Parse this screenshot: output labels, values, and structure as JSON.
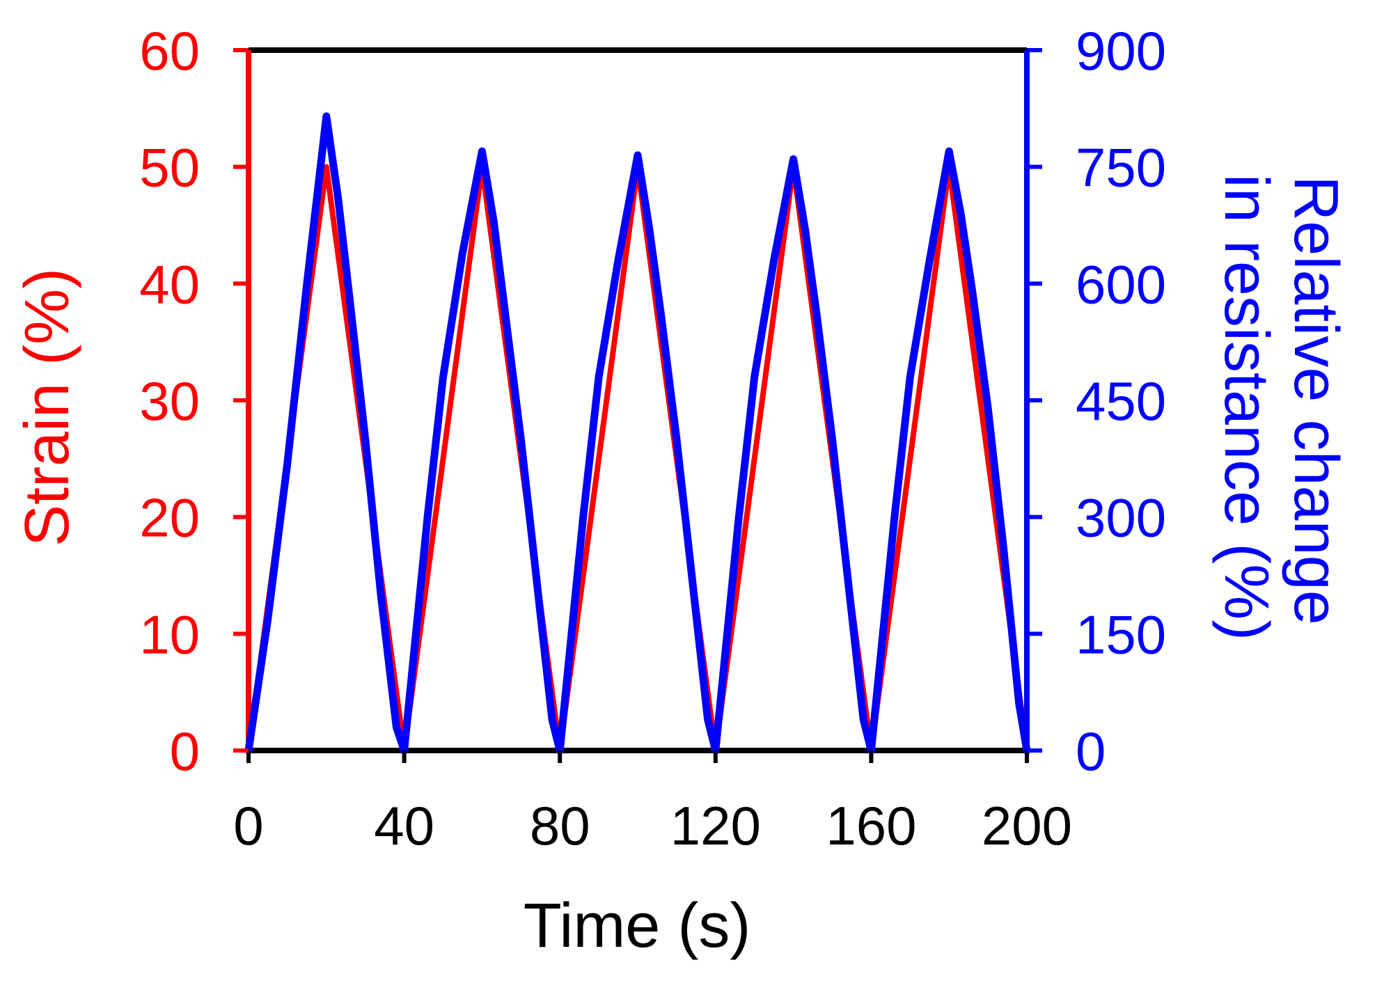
{
  "chart_data": {
    "type": "line",
    "xlabel": "Time (s)",
    "ylabel_left": "Strain (%)",
    "ylabel_right_line1": "Relative change",
    "ylabel_right_line2": "in resistance (%)",
    "xlim": [
      0,
      200
    ],
    "ylim_left": [
      0,
      60
    ],
    "ylim_right": [
      0,
      900
    ],
    "x_ticks": [
      0,
      40,
      80,
      120,
      160,
      200
    ],
    "y_left_ticks": [
      0,
      10,
      20,
      30,
      40,
      50,
      60
    ],
    "y_right_ticks": [
      0,
      150,
      300,
      450,
      600,
      750,
      900
    ],
    "grid": false,
    "series": [
      {
        "name": "Strain (%)",
        "axis": "left",
        "color": "#ff0000",
        "x": [
          0,
          20,
          40,
          60,
          80,
          100,
          120,
          140,
          160,
          180,
          200
        ],
        "y": [
          0,
          50,
          0,
          50,
          0,
          50,
          0,
          50,
          0,
          50,
          0
        ]
      },
      {
        "name": "Relative change in resistance (%)",
        "axis": "right",
        "color": "#0000ff",
        "x": [
          0,
          5,
          10,
          15,
          20,
          23,
          26,
          30,
          34,
          38,
          40,
          42,
          46,
          50,
          55,
          60,
          63,
          66,
          70,
          74,
          78,
          80,
          82,
          86,
          90,
          95,
          100,
          103,
          106,
          110,
          114,
          118,
          120,
          122,
          126,
          130,
          135,
          140,
          143,
          146,
          150,
          154,
          158,
          160,
          162,
          166,
          170,
          175,
          180,
          183,
          186,
          190,
          194,
          198,
          200
        ],
        "y": [
          0,
          170,
          370,
          600,
          815,
          710,
          580,
          400,
          200,
          30,
          0,
          100,
          300,
          480,
          640,
          770,
          680,
          560,
          400,
          220,
          40,
          0,
          100,
          300,
          480,
          630,
          765,
          670,
          560,
          400,
          220,
          40,
          0,
          100,
          300,
          480,
          630,
          760,
          670,
          560,
          400,
          220,
          40,
          0,
          100,
          300,
          480,
          630,
          770,
          690,
          590,
          440,
          260,
          60,
          0
        ]
      }
    ]
  }
}
